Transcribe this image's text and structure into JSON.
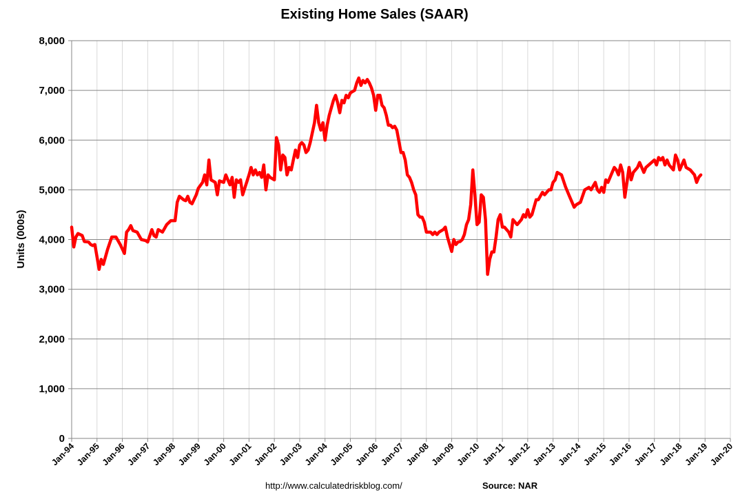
{
  "chart_data": {
    "type": "line",
    "title": "Existing Home Sales (SAAR)",
    "ylabel": "Units (000s)",
    "xlabel": "",
    "ylim": [
      0,
      8000
    ],
    "yticks": [
      0,
      1000,
      2000,
      3000,
      4000,
      5000,
      6000,
      7000,
      8000
    ],
    "ytick_labels": [
      "0",
      "1,000",
      "2,000",
      "3,000",
      "4,000",
      "5,000",
      "6,000",
      "7,000",
      "8,000"
    ],
    "xlim": [
      1994.0,
      2020.0
    ],
    "xticks": [
      1994,
      1995,
      1996,
      1997,
      1998,
      1999,
      2000,
      2001,
      2002,
      2003,
      2004,
      2005,
      2006,
      2007,
      2008,
      2009,
      2010,
      2011,
      2012,
      2013,
      2014,
      2015,
      2016,
      2017,
      2018,
      2019,
      2020
    ],
    "xtick_labels": [
      "Jan-94",
      "Jan-95",
      "Jan-96",
      "Jan-97",
      "Jan-98",
      "Jan-99",
      "Jan-00",
      "Jan-01",
      "Jan-02",
      "Jan-03",
      "Jan-04",
      "Jan-05",
      "Jan-06",
      "Jan-07",
      "Jan-08",
      "Jan-09",
      "Jan-10",
      "Jan-11",
      "Jan-12",
      "Jan-13",
      "Jan-14",
      "Jan-15",
      "Jan-16",
      "Jan-17",
      "Jan-18",
      "Jan-19",
      "Jan-20"
    ],
    "grid": "horizontal",
    "series": [
      {
        "color": "#ff0000",
        "points": [
          [
            "1994-01",
            4250
          ],
          [
            "1994-02",
            3850
          ],
          [
            "1994-03",
            4050
          ],
          [
            "1994-04",
            4120
          ],
          [
            "1994-06",
            4080
          ],
          [
            "1994-07",
            3960
          ],
          [
            "1994-09",
            3950
          ],
          [
            "1994-10",
            3900
          ],
          [
            "1994-11",
            3880
          ],
          [
            "1994-12",
            3900
          ],
          [
            "1995-01",
            3650
          ],
          [
            "1995-02",
            3400
          ],
          [
            "1995-03",
            3600
          ],
          [
            "1995-04",
            3500
          ],
          [
            "1995-06",
            3800
          ],
          [
            "1995-08",
            4050
          ],
          [
            "1995-10",
            4050
          ],
          [
            "1995-12",
            3900
          ],
          [
            "1996-02",
            3720
          ],
          [
            "1996-03",
            4150
          ],
          [
            "1996-04",
            4200
          ],
          [
            "1996-05",
            4280
          ],
          [
            "1996-06",
            4180
          ],
          [
            "1996-08",
            4150
          ],
          [
            "1996-10",
            4000
          ],
          [
            "1996-12",
            3980
          ],
          [
            "1997-01",
            3950
          ],
          [
            "1997-03",
            4200
          ],
          [
            "1997-04",
            4080
          ],
          [
            "1997-05",
            4050
          ],
          [
            "1997-06",
            4200
          ],
          [
            "1997-08",
            4150
          ],
          [
            "1997-10",
            4300
          ],
          [
            "1997-12",
            4380
          ],
          [
            "1998-02",
            4380
          ],
          [
            "1998-03",
            4750
          ],
          [
            "1998-04",
            4870
          ],
          [
            "1998-06",
            4800
          ],
          [
            "1998-07",
            4780
          ],
          [
            "1998-08",
            4870
          ],
          [
            "1998-09",
            4750
          ],
          [
            "1998-10",
            4720
          ],
          [
            "1998-12",
            4900
          ],
          [
            "1999-01",
            5030
          ],
          [
            "1999-03",
            5150
          ],
          [
            "1999-04",
            5300
          ],
          [
            "1999-05",
            5100
          ],
          [
            "1999-06",
            5600
          ],
          [
            "1999-07",
            5200
          ],
          [
            "1999-09",
            5150
          ],
          [
            "1999-10",
            4900
          ],
          [
            "1999-11",
            5180
          ],
          [
            "2000-01",
            5150
          ],
          [
            "2000-02",
            5300
          ],
          [
            "2000-03",
            5200
          ],
          [
            "2000-04",
            5100
          ],
          [
            "2000-05",
            5250
          ],
          [
            "2000-06",
            4850
          ],
          [
            "2000-07",
            5200
          ],
          [
            "2000-08",
            5150
          ],
          [
            "2000-09",
            5200
          ],
          [
            "2000-10",
            4900
          ],
          [
            "2001-01",
            5300
          ],
          [
            "2001-02",
            5450
          ],
          [
            "2001-03",
            5300
          ],
          [
            "2001-04",
            5400
          ],
          [
            "2001-05",
            5300
          ],
          [
            "2001-06",
            5350
          ],
          [
            "2001-07",
            5250
          ],
          [
            "2001-08",
            5500
          ],
          [
            "2001-09",
            5000
          ],
          [
            "2001-10",
            5300
          ],
          [
            "2001-11",
            5250
          ],
          [
            "2002-01",
            5200
          ],
          [
            "2002-02",
            6050
          ],
          [
            "2002-03",
            5900
          ],
          [
            "2002-04",
            5400
          ],
          [
            "2002-05",
            5700
          ],
          [
            "2002-06",
            5650
          ],
          [
            "2002-07",
            5300
          ],
          [
            "2002-08",
            5450
          ],
          [
            "2002-09",
            5400
          ],
          [
            "2002-10",
            5600
          ],
          [
            "2002-11",
            5800
          ],
          [
            "2002-12",
            5650
          ],
          [
            "2003-01",
            5900
          ],
          [
            "2003-02",
            5950
          ],
          [
            "2003-03",
            5900
          ],
          [
            "2003-04",
            5750
          ],
          [
            "2003-05",
            5800
          ],
          [
            "2003-06",
            5950
          ],
          [
            "2003-08",
            6350
          ],
          [
            "2003-09",
            6700
          ],
          [
            "2003-10",
            6350
          ],
          [
            "2003-11",
            6200
          ],
          [
            "2003-12",
            6350
          ],
          [
            "2004-01",
            6000
          ],
          [
            "2004-02",
            6300
          ],
          [
            "2004-03",
            6500
          ],
          [
            "2004-05",
            6800
          ],
          [
            "2004-06",
            6900
          ],
          [
            "2004-07",
            6750
          ],
          [
            "2004-08",
            6550
          ],
          [
            "2004-09",
            6800
          ],
          [
            "2004-10",
            6750
          ],
          [
            "2004-11",
            6900
          ],
          [
            "2004-12",
            6850
          ],
          [
            "2005-01",
            6950
          ],
          [
            "2005-03",
            7000
          ],
          [
            "2005-04",
            7150
          ],
          [
            "2005-05",
            7250
          ],
          [
            "2005-06",
            7100
          ],
          [
            "2005-07",
            7200
          ],
          [
            "2005-08",
            7150
          ],
          [
            "2005-09",
            7220
          ],
          [
            "2005-10",
            7150
          ],
          [
            "2005-11",
            7050
          ],
          [
            "2005-12",
            6900
          ],
          [
            "2006-01",
            6600
          ],
          [
            "2006-02",
            6900
          ],
          [
            "2006-03",
            6900
          ],
          [
            "2006-04",
            6700
          ],
          [
            "2006-05",
            6650
          ],
          [
            "2006-06",
            6500
          ],
          [
            "2006-07",
            6300
          ],
          [
            "2006-08",
            6300
          ],
          [
            "2006-09",
            6250
          ],
          [
            "2006-10",
            6280
          ],
          [
            "2006-11",
            6200
          ],
          [
            "2007-01",
            5750
          ],
          [
            "2007-02",
            5750
          ],
          [
            "2007-03",
            5600
          ],
          [
            "2007-04",
            5300
          ],
          [
            "2007-05",
            5250
          ],
          [
            "2007-06",
            5150
          ],
          [
            "2007-07",
            5000
          ],
          [
            "2007-08",
            4900
          ],
          [
            "2007-09",
            4500
          ],
          [
            "2007-10",
            4450
          ],
          [
            "2007-11",
            4450
          ],
          [
            "2007-12",
            4350
          ],
          [
            "2008-01",
            4150
          ],
          [
            "2008-03",
            4150
          ],
          [
            "2008-04",
            4100
          ],
          [
            "2008-05",
            4150
          ],
          [
            "2008-06",
            4100
          ],
          [
            "2008-07",
            4150
          ],
          [
            "2008-09",
            4200
          ],
          [
            "2008-10",
            4250
          ],
          [
            "2008-11",
            4050
          ],
          [
            "2009-01",
            3760
          ],
          [
            "2009-02",
            4000
          ],
          [
            "2009-03",
            3900
          ],
          [
            "2009-04",
            3950
          ],
          [
            "2009-05",
            3960
          ],
          [
            "2009-06",
            4000
          ],
          [
            "2009-07",
            4100
          ],
          [
            "2009-08",
            4300
          ],
          [
            "2009-09",
            4400
          ],
          [
            "2009-10",
            4700
          ],
          [
            "2009-11",
            5400
          ],
          [
            "2009-12",
            4900
          ],
          [
            "2010-01",
            4300
          ],
          [
            "2010-02",
            4350
          ],
          [
            "2010-03",
            4900
          ],
          [
            "2010-04",
            4850
          ],
          [
            "2010-05",
            4400
          ],
          [
            "2010-06",
            3300
          ],
          [
            "2010-07",
            3600
          ],
          [
            "2010-08",
            3750
          ],
          [
            "2010-09",
            3750
          ],
          [
            "2010-10",
            4050
          ],
          [
            "2010-11",
            4400
          ],
          [
            "2010-12",
            4500
          ],
          [
            "2011-01",
            4250
          ],
          [
            "2011-02",
            4250
          ],
          [
            "2011-03",
            4200
          ],
          [
            "2011-04",
            4150
          ],
          [
            "2011-05",
            4050
          ],
          [
            "2011-06",
            4400
          ],
          [
            "2011-08",
            4300
          ],
          [
            "2011-09",
            4350
          ],
          [
            "2011-10",
            4400
          ],
          [
            "2011-11",
            4500
          ],
          [
            "2011-12",
            4450
          ],
          [
            "2012-01",
            4600
          ],
          [
            "2012-02",
            4450
          ],
          [
            "2012-03",
            4500
          ],
          [
            "2012-05",
            4800
          ],
          [
            "2012-06",
            4800
          ],
          [
            "2012-08",
            4950
          ],
          [
            "2012-09",
            4900
          ],
          [
            "2012-11",
            5000
          ],
          [
            "2012-12",
            5000
          ],
          [
            "2013-01",
            5150
          ],
          [
            "2013-02",
            5200
          ],
          [
            "2013-03",
            5350
          ],
          [
            "2013-05",
            5300
          ],
          [
            "2013-07",
            5050
          ],
          [
            "2013-09",
            4850
          ],
          [
            "2013-11",
            4650
          ],
          [
            "2013-12",
            4700
          ],
          [
            "2014-02",
            4750
          ],
          [
            "2014-04",
            5000
          ],
          [
            "2014-06",
            5050
          ],
          [
            "2014-07",
            5000
          ],
          [
            "2014-09",
            5150
          ],
          [
            "2014-10",
            5000
          ],
          [
            "2014-11",
            4950
          ],
          [
            "2014-12",
            5050
          ],
          [
            "2015-01",
            4950
          ],
          [
            "2015-02",
            5200
          ],
          [
            "2015-03",
            5150
          ],
          [
            "2015-05",
            5350
          ],
          [
            "2015-06",
            5450
          ],
          [
            "2015-07",
            5400
          ],
          [
            "2015-08",
            5300
          ],
          [
            "2015-09",
            5500
          ],
          [
            "2015-10",
            5350
          ],
          [
            "2015-11",
            4850
          ],
          [
            "2016-01",
            5450
          ],
          [
            "2016-02",
            5200
          ],
          [
            "2016-03",
            5350
          ],
          [
            "2016-05",
            5450
          ],
          [
            "2016-06",
            5550
          ],
          [
            "2016-07",
            5450
          ],
          [
            "2016-08",
            5350
          ],
          [
            "2016-09",
            5450
          ],
          [
            "2017-01",
            5600
          ],
          [
            "2017-02",
            5500
          ],
          [
            "2017-03",
            5650
          ],
          [
            "2017-04",
            5600
          ],
          [
            "2017-05",
            5650
          ],
          [
            "2017-06",
            5500
          ],
          [
            "2017-07",
            5600
          ],
          [
            "2017-08",
            5500
          ],
          [
            "2017-09",
            5450
          ],
          [
            "2017-10",
            5400
          ],
          [
            "2017-11",
            5700
          ],
          [
            "2017-12",
            5600
          ],
          [
            "2018-01",
            5400
          ],
          [
            "2018-02",
            5500
          ],
          [
            "2018-03",
            5600
          ],
          [
            "2018-04",
            5450
          ],
          [
            "2018-06",
            5400
          ],
          [
            "2018-07",
            5350
          ],
          [
            "2018-08",
            5300
          ],
          [
            "2018-09",
            5150
          ],
          [
            "2018-10",
            5250
          ],
          [
            "2018-11",
            5300
          ]
        ]
      }
    ]
  },
  "footer": {
    "url": "http://www.calculatedriskblog.com/",
    "source": "Source: NAR"
  }
}
